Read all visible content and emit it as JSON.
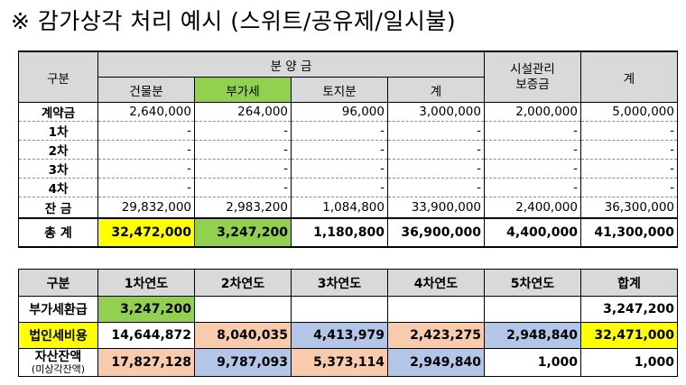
{
  "title": "※ 감가상각 처리 예시 (스위트/공유제/일시불)",
  "table1": {
    "header": {
      "gubun": "구분",
      "bunyang": "분 양 금",
      "sisul": "시설관리\n보증금",
      "total": "계",
      "sub": [
        "건물분",
        "부가세",
        "토지분",
        "계"
      ]
    },
    "rows": [
      {
        "label": "계약금",
        "values": [
          "2,640,000",
          "264,000",
          "96,000",
          "3,000,000",
          "2,000,000",
          "5,000,000"
        ]
      },
      {
        "label": "1차",
        "values": [
          "-",
          "-",
          "-",
          "-",
          "-",
          "-"
        ]
      },
      {
        "label": "2차",
        "values": [
          "-",
          "-",
          "-",
          "-",
          "-",
          "-"
        ]
      },
      {
        "label": "3차",
        "values": [
          "-",
          "-",
          "-",
          "-",
          "-",
          "-"
        ]
      },
      {
        "label": "4차",
        "values": [
          "-",
          "-",
          "-",
          "-",
          "-",
          "-"
        ]
      },
      {
        "label": "잔 금",
        "values": [
          "29,832,000",
          "2,983,200",
          "1,084,800",
          "33,900,000",
          "2,400,000",
          "36,300,000"
        ]
      }
    ],
    "totals": {
      "label": "총 계",
      "values": [
        "32,472,000",
        "3,247,200",
        "1,180,800",
        "36,900,000",
        "4,400,000",
        "41,300,000"
      ]
    }
  },
  "table2": {
    "header": [
      "구분",
      "1차연도",
      "2차연도",
      "3차연도",
      "4차연도",
      "5차연도",
      "합계"
    ],
    "rows": [
      {
        "label": "부가세환급",
        "values": [
          "3,247,200",
          "",
          "",
          "",
          "",
          "3,247,200"
        ]
      },
      {
        "label": "법인세비용",
        "values": [
          "14,644,872",
          "8,040,035",
          "4,413,979",
          "2,423,275",
          "2,948,840",
          "32,471,000"
        ]
      },
      {
        "label": "자산잔액",
        "sublabel": "(미상각잔액)",
        "values": [
          "17,827,128",
          "9,787,093",
          "5,373,114",
          "2,949,840",
          "1,000",
          "1,000"
        ]
      }
    ]
  },
  "colors": {
    "header_gray": "#d9d9d9",
    "yellow": "#ffff00",
    "green": "#92d050",
    "orange": "#f8cbad",
    "blue": "#b4c6e7"
  }
}
